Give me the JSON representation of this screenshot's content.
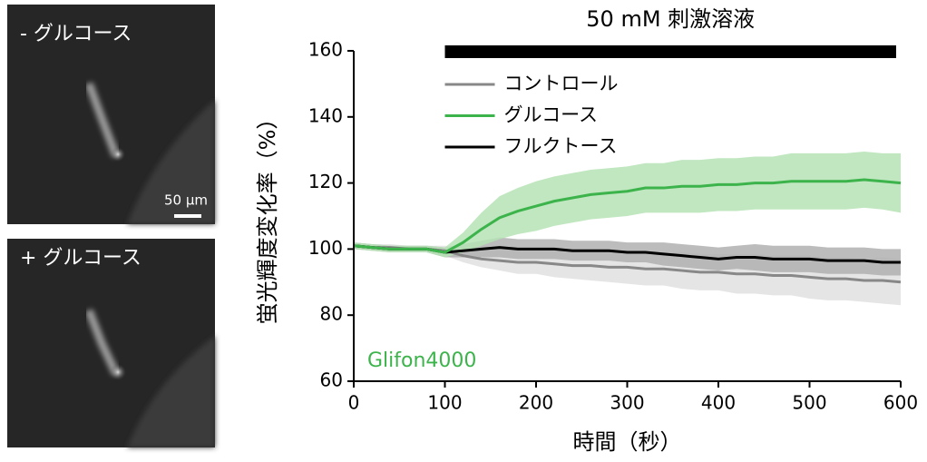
{
  "panels": [
    {
      "label": "- グルコース",
      "scale_bar": "50 μm"
    },
    {
      "label": "+ グルコース"
    }
  ],
  "chart_data": {
    "type": "line",
    "xlabel": "時間（秒）",
    "ylabel": "蛍光輝度変化率（%）",
    "annotation": "Glifon4000",
    "stimulus": {
      "label": "50 mM 刺激溶液",
      "start": 100,
      "end": 595
    },
    "xlim": [
      0,
      600
    ],
    "xticks": [
      0,
      100,
      200,
      300,
      400,
      500,
      600
    ],
    "ylim": [
      60,
      160
    ],
    "yticks": [
      60,
      80,
      100,
      120,
      140,
      160
    ],
    "grid": false,
    "legend": "upper left",
    "x": [
      0,
      20,
      40,
      60,
      80,
      100,
      120,
      140,
      160,
      180,
      200,
      220,
      240,
      260,
      280,
      300,
      320,
      340,
      360,
      380,
      400,
      420,
      440,
      460,
      480,
      500,
      520,
      540,
      560,
      580,
      600
    ],
    "series": [
      {
        "name": "コントロール",
        "color": "#888888",
        "band_color": "#e0e0e0",
        "values": [
          101,
          100.5,
          100.5,
          100,
          100,
          99.5,
          98,
          97,
          96.5,
          96,
          96,
          95.5,
          95,
          95,
          94.5,
          94.5,
          94,
          94,
          93.5,
          93,
          93,
          92.5,
          92.5,
          92,
          92,
          91.5,
          91,
          91,
          90.5,
          90.5,
          90
        ],
        "errors": [
          1,
          1,
          1,
          1,
          1,
          1.5,
          2,
          2.5,
          3,
          3.5,
          3.5,
          4,
          4,
          4.5,
          4.5,
          5,
          5,
          5,
          5.5,
          5.5,
          5.5,
          6,
          6,
          6,
          6,
          6.5,
          6.5,
          6.5,
          6.5,
          7,
          7
        ]
      },
      {
        "name": "グルコース",
        "color": "#3cb44b",
        "band_color": "#b5e3b5",
        "values": [
          101,
          100.5,
          100,
          100,
          100,
          99,
          102,
          106,
          109.5,
          111.5,
          113,
          114.5,
          115.5,
          116.5,
          117,
          117.5,
          118.5,
          118.5,
          119,
          119,
          119.5,
          119.5,
          120,
          120,
          120.5,
          120.5,
          120.5,
          120.5,
          121,
          120.5,
          120
        ],
        "errors": [
          1,
          1,
          1,
          1,
          1,
          1.5,
          3,
          5,
          6.5,
          7,
          7.5,
          7.5,
          7.5,
          7.5,
          7.5,
          7.5,
          7.5,
          7.5,
          8,
          8,
          8,
          8,
          8,
          8,
          8.5,
          8.5,
          8.5,
          8.5,
          8.5,
          8.5,
          9
        ]
      },
      {
        "name": "フルクトース",
        "color": "#000000",
        "band_color": "#b0b0b0",
        "values": [
          101,
          100.5,
          100,
          100,
          100,
          99,
          99.5,
          100,
          100.5,
          100,
          100,
          100,
          99.5,
          99.5,
          99.5,
          99,
          99,
          98.5,
          98,
          97.5,
          97,
          97.5,
          97.5,
          97,
          97,
          97,
          96.5,
          96.5,
          96.5,
          96,
          96
        ],
        "errors": [
          1,
          1,
          1,
          1,
          1,
          1.5,
          2,
          2.5,
          3,
          3,
          3,
          3,
          3,
          3,
          3,
          3,
          3,
          3.5,
          3.5,
          3.5,
          3.5,
          3.5,
          4,
          4,
          4,
          4,
          4,
          4,
          4,
          4,
          4
        ]
      }
    ]
  }
}
